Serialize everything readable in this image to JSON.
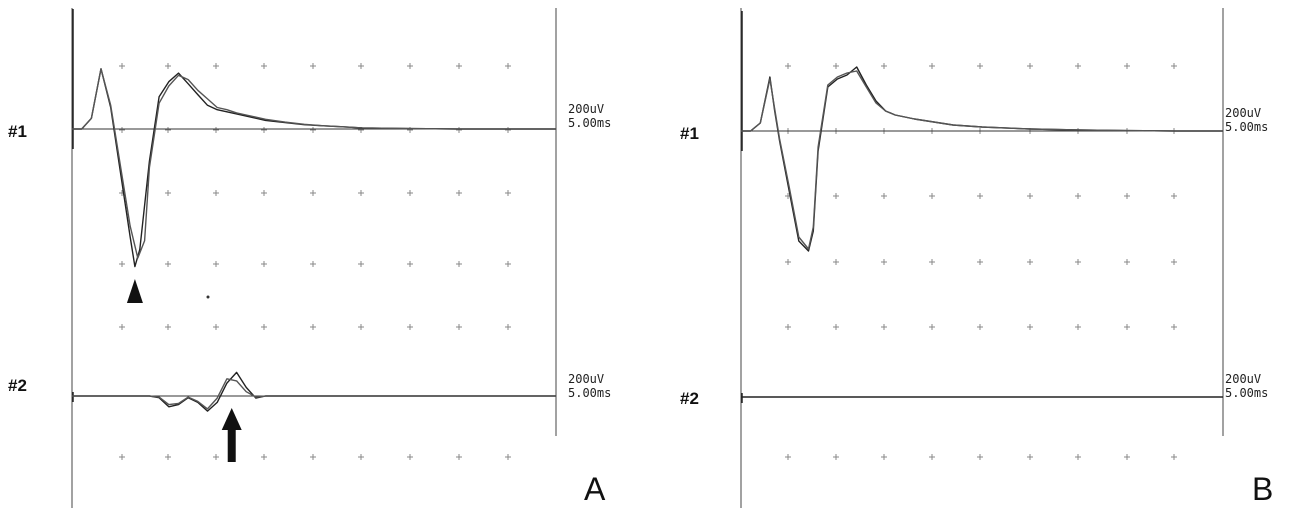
{
  "chart_data": [
    {
      "type": "line",
      "panel_label": "A",
      "channels": [
        {
          "label": "#1",
          "scale": [
            "200uV",
            "5.00ms"
          ],
          "traces": [
            {
              "t": [
                0,
                1,
                2,
                3,
                4,
                5,
                6,
                6.5,
                7,
                8,
                9,
                10,
                11,
                12,
                13,
                14,
                15,
                16,
                17,
                18,
                20,
                22,
                24,
                26,
                28,
                30,
                35,
                40,
                45,
                50
              ],
              "v": [
                0,
                0,
                50,
                280,
                100,
                -200,
                -500,
                -640,
                -560,
                -150,
                150,
                220,
                260,
                210,
                160,
                110,
                90,
                80,
                70,
                60,
                40,
                30,
                20,
                15,
                10,
                5,
                2,
                0,
                0,
                0
              ]
            },
            {
              "t": [
                0,
                1,
                2,
                3,
                4,
                5,
                6,
                6.8,
                7.5,
                8,
                9,
                10,
                11,
                12,
                13,
                14,
                15,
                16,
                17,
                18,
                20,
                22,
                24,
                26,
                28,
                30,
                35,
                40,
                45,
                50
              ],
              "v": [
                0,
                0,
                50,
                280,
                110,
                -170,
                -450,
                -600,
                -520,
                -180,
                120,
                200,
                250,
                230,
                180,
                140,
                100,
                90,
                75,
                65,
                45,
                32,
                22,
                15,
                10,
                5,
                2,
                0,
                0,
                0
              ]
            }
          ]
        },
        {
          "label": "#2",
          "scale": [
            "200uV",
            "5.00ms"
          ],
          "traces": [
            {
              "t": [
                0,
                5,
                8,
                9,
                10,
                11,
                12,
                13,
                14,
                15,
                16,
                17,
                18,
                19,
                20,
                50
              ],
              "v": [
                0,
                0,
                0,
                -8,
                -50,
                -40,
                -8,
                -30,
                -70,
                -30,
                60,
                110,
                40,
                -10,
                0,
                0
              ]
            },
            {
              "t": [
                0,
                5,
                8,
                9,
                10,
                11,
                12,
                13,
                14,
                15,
                16,
                17,
                18,
                19,
                20,
                50
              ],
              "v": [
                0,
                0,
                0,
                -5,
                -40,
                -35,
                -5,
                -25,
                -60,
                -10,
                80,
                70,
                20,
                -5,
                0,
                0
              ]
            }
          ]
        }
      ],
      "annotations": [
        {
          "type": "arrowhead",
          "channel": "#1",
          "t": 6.5
        },
        {
          "type": "arrow",
          "channel": "#2",
          "t": 16.5
        }
      ]
    },
    {
      "type": "line",
      "panel_label": "B",
      "channels": [
        {
          "label": "#1",
          "scale": [
            "200uV",
            "5.00ms"
          ],
          "traces": [
            {
              "t": [
                0,
                1,
                2,
                3,
                3.5,
                4,
                5,
                6,
                7,
                7.5,
                8,
                9,
                10,
                11,
                12,
                13,
                14,
                15,
                16,
                18,
                20,
                22,
                25,
                30,
                35,
                40,
                45,
                50
              ],
              "v": [
                0,
                0,
                40,
                270,
                100,
                -50,
                -300,
                -550,
                -600,
                -500,
                -100,
                220,
                260,
                280,
                320,
                230,
                150,
                100,
                80,
                60,
                45,
                30,
                20,
                10,
                5,
                2,
                0,
                0
              ]
            },
            {
              "t": [
                0,
                1,
                2,
                3,
                3.5,
                4,
                5,
                6,
                7,
                7.5,
                8,
                9,
                10,
                11,
                12,
                13,
                14,
                15,
                16,
                18,
                20,
                22,
                25,
                30,
                35,
                40,
                45,
                50
              ],
              "v": [
                0,
                0,
                40,
                260,
                110,
                -40,
                -280,
                -530,
                -590,
                -480,
                -80,
                230,
                270,
                290,
                300,
                220,
                140,
                100,
                80,
                60,
                45,
                30,
                20,
                10,
                5,
                2,
                0,
                0
              ]
            }
          ]
        },
        {
          "label": "#2",
          "scale": [
            "200uV",
            "5.00ms"
          ],
          "traces": [
            {
              "t": [
                0,
                50
              ],
              "v": [
                0,
                0
              ]
            }
          ]
        }
      ],
      "annotations": []
    }
  ]
}
